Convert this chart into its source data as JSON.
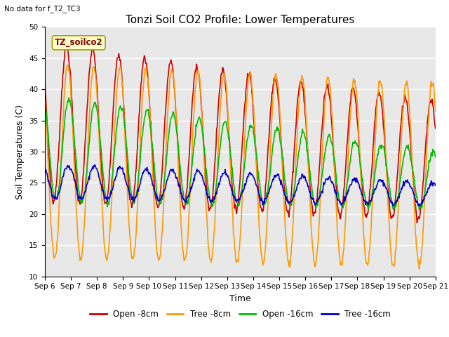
{
  "title": "Tonzi Soil CO2 Profile: Lower Temperatures",
  "subtitle": "No data for f_T2_TC3",
  "legend_title": "TZ_soilco2",
  "xlabel": "Time",
  "ylabel": "Soil Temperatures (C)",
  "ylim": [
    10,
    50
  ],
  "xlim": [
    0,
    360
  ],
  "background_color": "#ffffff",
  "plot_bg_color": "#e8e8e8",
  "series_colors": [
    "#cc0000",
    "#ff9900",
    "#00bb00",
    "#0000cc"
  ],
  "series_labels": [
    "Open -8cm",
    "Tree -8cm",
    "Open -16cm",
    "Tree -16cm"
  ],
  "x_tick_labels": [
    "Sep 6",
    "Sep 7",
    "Sep 8",
    "Sep 9",
    "Sep 10",
    "Sep 11",
    "Sep 12",
    "Sep 13",
    "Sep 14",
    "Sep 15",
    "Sep 16",
    "Sep 17",
    "Sep 18",
    "Sep 19",
    "Sep 20",
    "Sep 21"
  ],
  "x_tick_positions": [
    0,
    24,
    48,
    72,
    96,
    120,
    144,
    168,
    192,
    216,
    240,
    264,
    288,
    312,
    336,
    360
  ],
  "y_ticks": [
    10,
    15,
    20,
    25,
    30,
    35,
    40,
    45,
    50
  ],
  "title_fontsize": 11,
  "axis_fontsize": 9,
  "tick_fontsize": 7.5,
  "legend_fontsize": 8.5,
  "line_width": 1.2
}
